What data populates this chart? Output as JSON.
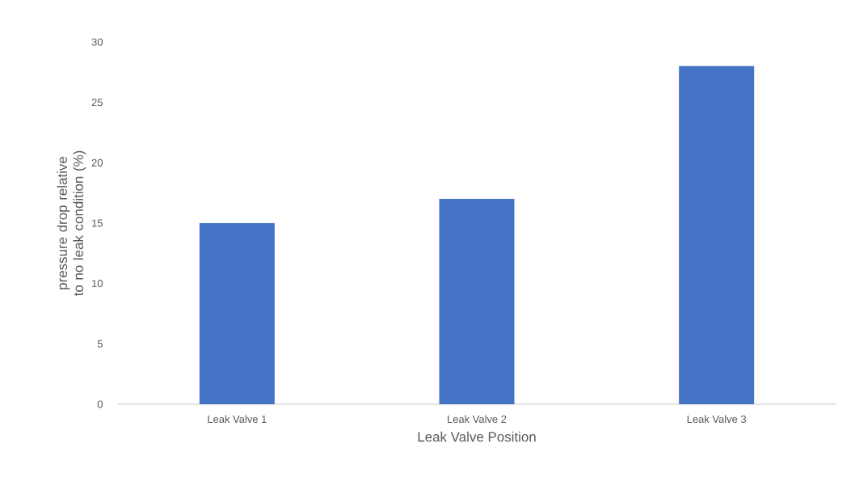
{
  "chart_data": {
    "type": "bar",
    "xlabel": "Leak Valve Position",
    "ylabel": "pressure drop relative to no leak condition (%)",
    "categories": [
      "Leak Valve 1",
      "Leak Valve 2",
      "Leak Valve 3"
    ],
    "values": [
      15,
      17,
      28
    ],
    "color": "#4472c4",
    "ylim": [
      0,
      30
    ],
    "yticks": [
      0,
      5,
      10,
      15,
      20,
      25,
      30
    ]
  }
}
